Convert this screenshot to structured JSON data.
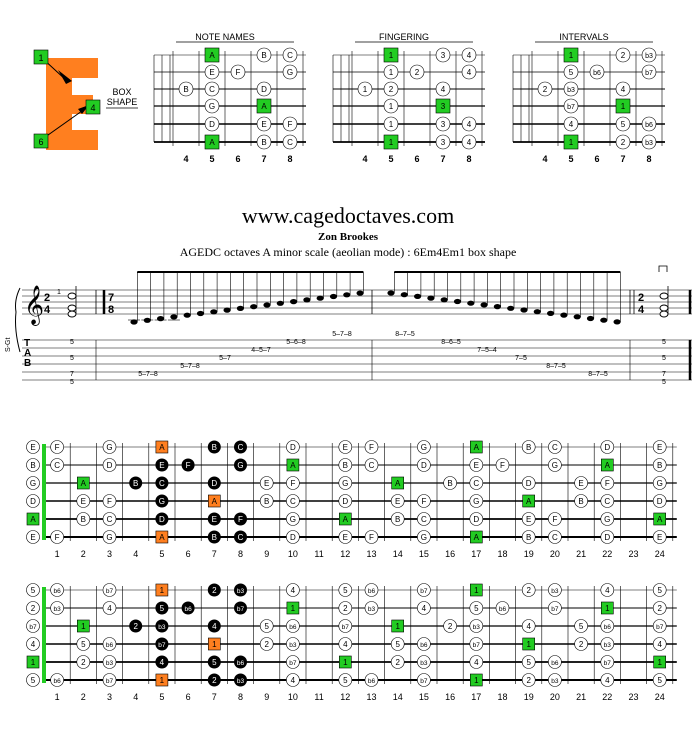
{
  "logo": {
    "letter": "E",
    "box_label_1": "BOX",
    "box_label_2": "SHAPE",
    "markers": [
      "1",
      "4",
      "6"
    ],
    "color": "#ff7f1f"
  },
  "small_diagrams": [
    {
      "title": "NOTE NAMES",
      "fret_numbers": [
        "4",
        "5",
        "6",
        "7",
        "8"
      ],
      "strings": [
        [
          [
            "A",
            "g"
          ],
          [
            "B",
            "o"
          ],
          [
            "C",
            "o"
          ]
        ],
        [
          [
            "E",
            "o"
          ],
          [
            "F",
            "o"
          ],
          [
            "G",
            "o"
          ]
        ],
        [
          [
            "B",
            "o"
          ],
          [
            "C",
            "o"
          ],
          [
            "D",
            "o"
          ]
        ],
        [
          [
            "G",
            "o"
          ],
          [
            "A",
            "g"
          ]
        ],
        [
          [
            "D",
            "o"
          ],
          [
            "E",
            "o"
          ],
          [
            "F",
            "o"
          ]
        ],
        [
          [
            "A",
            "g"
          ],
          [
            "B",
            "o"
          ],
          [
            "C",
            "o"
          ]
        ]
      ]
    },
    {
      "title": "FINGERING",
      "fret_numbers": [
        "4",
        "5",
        "6",
        "7",
        "8"
      ],
      "strings": [
        [
          [
            "1",
            "g"
          ],
          [
            "3",
            "o"
          ],
          [
            "4",
            "o"
          ]
        ],
        [
          [
            "1",
            "o"
          ],
          [
            "2",
            "o"
          ],
          [
            "4",
            "o"
          ]
        ],
        [
          [
            "1",
            "o"
          ],
          [
            "2",
            "o"
          ],
          [
            "4",
            "o"
          ]
        ],
        [
          [
            "1",
            "o"
          ],
          [
            "3",
            "g"
          ]
        ],
        [
          [
            "1",
            "o"
          ],
          [
            "3",
            "o"
          ],
          [
            "4",
            "o"
          ]
        ],
        [
          [
            "1",
            "g"
          ],
          [
            "3",
            "o"
          ],
          [
            "4",
            "o"
          ]
        ]
      ]
    },
    {
      "title": "INTERVALS",
      "fret_numbers": [
        "4",
        "5",
        "6",
        "7",
        "8"
      ],
      "strings": [
        [
          [
            "1",
            "g"
          ],
          [
            "2",
            "o"
          ],
          [
            "b3",
            "o"
          ]
        ],
        [
          [
            "5",
            "o"
          ],
          [
            "b6",
            "o"
          ],
          [
            "b7",
            "o"
          ]
        ],
        [
          [
            "2",
            "o"
          ],
          [
            "b3",
            "o"
          ],
          [
            "4",
            "o"
          ]
        ],
        [
          [
            "b7",
            "o"
          ],
          [
            "1",
            "g"
          ]
        ],
        [
          [
            "4",
            "o"
          ],
          [
            "5",
            "o"
          ],
          [
            "b6",
            "o"
          ]
        ],
        [
          [
            "1",
            "g"
          ],
          [
            "2",
            "o"
          ],
          [
            "b3",
            "o"
          ]
        ]
      ]
    }
  ],
  "site_title": "www.cagedoctaves.com",
  "author": "Zon Brookes",
  "subtitle": "AGEDC octaves A minor scale (aeolian mode) : 6Em4Em1 box shape",
  "staff": {
    "instrument_label": "S-Gt",
    "time_sig_1": [
      "2",
      "4"
    ],
    "time_sig_2": [
      "7",
      "8"
    ],
    "time_sig_3": [
      "2",
      "4"
    ],
    "tab_letters": [
      "T",
      "A",
      "B"
    ],
    "fingering_mark": "1",
    "tab_rows": [
      "5",
      "5",
      "7",
      "5",
      "5–7–8",
      "5–7–8",
      "5–7",
      "4–5–7",
      "5–6–8",
      "5–7–8",
      "8–7–5",
      "8–6–5",
      "7–5–4",
      "7–5",
      "8–7–5",
      "8–7–5",
      "5",
      "5",
      "7",
      "5"
    ]
  },
  "fretboards": [
    {
      "name": "notes",
      "fret_numbers": [
        "1",
        "2",
        "3",
        "4",
        "5",
        "6",
        "7",
        "8",
        "9",
        "10",
        "11",
        "12",
        "13",
        "14",
        "15",
        "16",
        "17",
        "18",
        "19",
        "20",
        "21",
        "22",
        "23",
        "24"
      ],
      "strings": [
        [
          [
            "E",
            0,
            "o"
          ],
          [
            "F",
            1,
            "o"
          ],
          [
            "G",
            3,
            "o"
          ],
          [
            "A",
            5,
            "or"
          ],
          [
            "B",
            7,
            "b"
          ],
          [
            "C",
            8,
            "b"
          ],
          [
            "D",
            10,
            "o"
          ],
          [
            "E",
            12,
            "o"
          ],
          [
            "F",
            13,
            "o"
          ],
          [
            "G",
            15,
            "o"
          ],
          [
            "A",
            17,
            "g"
          ],
          [
            "B",
            19,
            "o"
          ],
          [
            "C",
            20,
            "o"
          ],
          [
            "D",
            22,
            "o"
          ],
          [
            "E",
            24,
            "o"
          ]
        ],
        [
          [
            "B",
            0,
            "o"
          ],
          [
            "C",
            1,
            "o"
          ],
          [
            "D",
            3,
            "o"
          ],
          [
            "E",
            5,
            "b"
          ],
          [
            "F",
            6,
            "b"
          ],
          [
            "G",
            8,
            "b"
          ],
          [
            "A",
            10,
            "g"
          ],
          [
            "B",
            12,
            "o"
          ],
          [
            "C",
            13,
            "o"
          ],
          [
            "D",
            15,
            "o"
          ],
          [
            "E",
            17,
            "o"
          ],
          [
            "F",
            18,
            "o"
          ],
          [
            "G",
            20,
            "o"
          ],
          [
            "A",
            22,
            "g"
          ],
          [
            "B",
            24,
            "o"
          ]
        ],
        [
          [
            "G",
            0,
            "o"
          ],
          [
            "A",
            2,
            "g"
          ],
          [
            "B",
            4,
            "b"
          ],
          [
            "C",
            5,
            "b"
          ],
          [
            "D",
            7,
            "b"
          ],
          [
            "E",
            9,
            "o"
          ],
          [
            "F",
            10,
            "o"
          ],
          [
            "G",
            12,
            "o"
          ],
          [
            "A",
            14,
            "g"
          ],
          [
            "B",
            16,
            "o"
          ],
          [
            "C",
            17,
            "o"
          ],
          [
            "D",
            19,
            "o"
          ],
          [
            "E",
            21,
            "o"
          ],
          [
            "F",
            22,
            "o"
          ],
          [
            "G",
            24,
            "o"
          ]
        ],
        [
          [
            "D",
            0,
            "o"
          ],
          [
            "E",
            2,
            "o"
          ],
          [
            "F",
            3,
            "o"
          ],
          [
            "G",
            5,
            "b"
          ],
          [
            "A",
            7,
            "or"
          ],
          [
            "B",
            9,
            "o"
          ],
          [
            "C",
            10,
            "o"
          ],
          [
            "D",
            12,
            "o"
          ],
          [
            "E",
            14,
            "o"
          ],
          [
            "F",
            15,
            "o"
          ],
          [
            "G",
            17,
            "o"
          ],
          [
            "A",
            19,
            "g"
          ],
          [
            "B",
            21,
            "o"
          ],
          [
            "C",
            22,
            "o"
          ],
          [
            "D",
            24,
            "o"
          ]
        ],
        [
          [
            "A",
            0,
            "g"
          ],
          [
            "B",
            2,
            "o"
          ],
          [
            "C",
            3,
            "o"
          ],
          [
            "D",
            5,
            "b"
          ],
          [
            "E",
            7,
            "b"
          ],
          [
            "F",
            8,
            "b"
          ],
          [
            "G",
            10,
            "o"
          ],
          [
            "A",
            12,
            "g"
          ],
          [
            "B",
            14,
            "o"
          ],
          [
            "C",
            15,
            "o"
          ],
          [
            "D",
            17,
            "o"
          ],
          [
            "E",
            19,
            "o"
          ],
          [
            "F",
            20,
            "o"
          ],
          [
            "G",
            22,
            "o"
          ],
          [
            "A",
            24,
            "g"
          ]
        ],
        [
          [
            "E",
            0,
            "o"
          ],
          [
            "F",
            1,
            "o"
          ],
          [
            "G",
            3,
            "o"
          ],
          [
            "A",
            5,
            "or"
          ],
          [
            "B",
            7,
            "b"
          ],
          [
            "C",
            8,
            "b"
          ],
          [
            "D",
            10,
            "o"
          ],
          [
            "E",
            12,
            "o"
          ],
          [
            "F",
            13,
            "o"
          ],
          [
            "G",
            15,
            "o"
          ],
          [
            "A",
            17,
            "g"
          ],
          [
            "B",
            19,
            "o"
          ],
          [
            "C",
            20,
            "o"
          ],
          [
            "D",
            22,
            "o"
          ],
          [
            "E",
            24,
            "o"
          ]
        ]
      ]
    },
    {
      "name": "intervals",
      "fret_numbers": [
        "1",
        "2",
        "3",
        "4",
        "5",
        "6",
        "7",
        "8",
        "9",
        "10",
        "11",
        "12",
        "13",
        "14",
        "15",
        "16",
        "17",
        "18",
        "19",
        "20",
        "21",
        "22",
        "23",
        "24"
      ],
      "strings": [
        [
          [
            "5",
            0,
            "o"
          ],
          [
            "b6",
            1,
            "o"
          ],
          [
            "b7",
            3,
            "o"
          ],
          [
            "1",
            5,
            "or"
          ],
          [
            "2",
            7,
            "b"
          ],
          [
            "b3",
            8,
            "b"
          ],
          [
            "4",
            10,
            "o"
          ],
          [
            "5",
            12,
            "o"
          ],
          [
            "b6",
            13,
            "o"
          ],
          [
            "b7",
            15,
            "o"
          ],
          [
            "1",
            17,
            "g"
          ],
          [
            "2",
            19,
            "o"
          ],
          [
            "b3",
            20,
            "o"
          ],
          [
            "4",
            22,
            "o"
          ],
          [
            "5",
            24,
            "o"
          ]
        ],
        [
          [
            "2",
            0,
            "o"
          ],
          [
            "b3",
            1,
            "o"
          ],
          [
            "4",
            3,
            "o"
          ],
          [
            "5",
            5,
            "b"
          ],
          [
            "b6",
            6,
            "b"
          ],
          [
            "b7",
            8,
            "b"
          ],
          [
            "1",
            10,
            "g"
          ],
          [
            "2",
            12,
            "o"
          ],
          [
            "b3",
            13,
            "o"
          ],
          [
            "4",
            15,
            "o"
          ],
          [
            "5",
            17,
            "o"
          ],
          [
            "b6",
            18,
            "o"
          ],
          [
            "b7",
            20,
            "o"
          ],
          [
            "1",
            22,
            "g"
          ],
          [
            "2",
            24,
            "o"
          ]
        ],
        [
          [
            "b7",
            0,
            "o"
          ],
          [
            "1",
            2,
            "g"
          ],
          [
            "2",
            4,
            "b"
          ],
          [
            "b3",
            5,
            "b"
          ],
          [
            "4",
            7,
            "b"
          ],
          [
            "5",
            9,
            "o"
          ],
          [
            "b6",
            10,
            "o"
          ],
          [
            "b7",
            12,
            "o"
          ],
          [
            "1",
            14,
            "g"
          ],
          [
            "2",
            16,
            "o"
          ],
          [
            "b3",
            17,
            "o"
          ],
          [
            "4",
            19,
            "o"
          ],
          [
            "5",
            21,
            "o"
          ],
          [
            "b6",
            22,
            "o"
          ],
          [
            "b7",
            24,
            "o"
          ]
        ],
        [
          [
            "4",
            0,
            "o"
          ],
          [
            "5",
            2,
            "o"
          ],
          [
            "b6",
            3,
            "o"
          ],
          [
            "b7",
            5,
            "b"
          ],
          [
            "1",
            7,
            "or"
          ],
          [
            "2",
            9,
            "o"
          ],
          [
            "b3",
            10,
            "o"
          ],
          [
            "4",
            12,
            "o"
          ],
          [
            "5",
            14,
            "o"
          ],
          [
            "b6",
            15,
            "o"
          ],
          [
            "b7",
            17,
            "o"
          ],
          [
            "1",
            19,
            "g"
          ],
          [
            "2",
            21,
            "o"
          ],
          [
            "b3",
            22,
            "o"
          ],
          [
            "4",
            24,
            "o"
          ]
        ],
        [
          [
            "1",
            0,
            "g"
          ],
          [
            "2",
            2,
            "o"
          ],
          [
            "b3",
            3,
            "o"
          ],
          [
            "4",
            5,
            "b"
          ],
          [
            "5",
            7,
            "b"
          ],
          [
            "b6",
            8,
            "b"
          ],
          [
            "b7",
            10,
            "o"
          ],
          [
            "1",
            12,
            "g"
          ],
          [
            "2",
            14,
            "o"
          ],
          [
            "b3",
            15,
            "o"
          ],
          [
            "4",
            17,
            "o"
          ],
          [
            "5",
            19,
            "o"
          ],
          [
            "b6",
            20,
            "o"
          ],
          [
            "b7",
            22,
            "o"
          ],
          [
            "1",
            24,
            "g"
          ]
        ],
        [
          [
            "5",
            0,
            "o"
          ],
          [
            "b6",
            1,
            "o"
          ],
          [
            "b7",
            3,
            "o"
          ],
          [
            "1",
            5,
            "or"
          ],
          [
            "2",
            7,
            "b"
          ],
          [
            "b3",
            8,
            "b"
          ],
          [
            "4",
            10,
            "o"
          ],
          [
            "5",
            12,
            "o"
          ],
          [
            "b6",
            13,
            "o"
          ],
          [
            "b7",
            15,
            "o"
          ],
          [
            "1",
            17,
            "g"
          ],
          [
            "2",
            19,
            "o"
          ],
          [
            "b3",
            20,
            "o"
          ],
          [
            "4",
            22,
            "o"
          ],
          [
            "5",
            24,
            "o"
          ]
        ]
      ]
    }
  ],
  "colors": {
    "root": "#22cc22",
    "orange": "#ff7f1f",
    "black": "#000000"
  }
}
